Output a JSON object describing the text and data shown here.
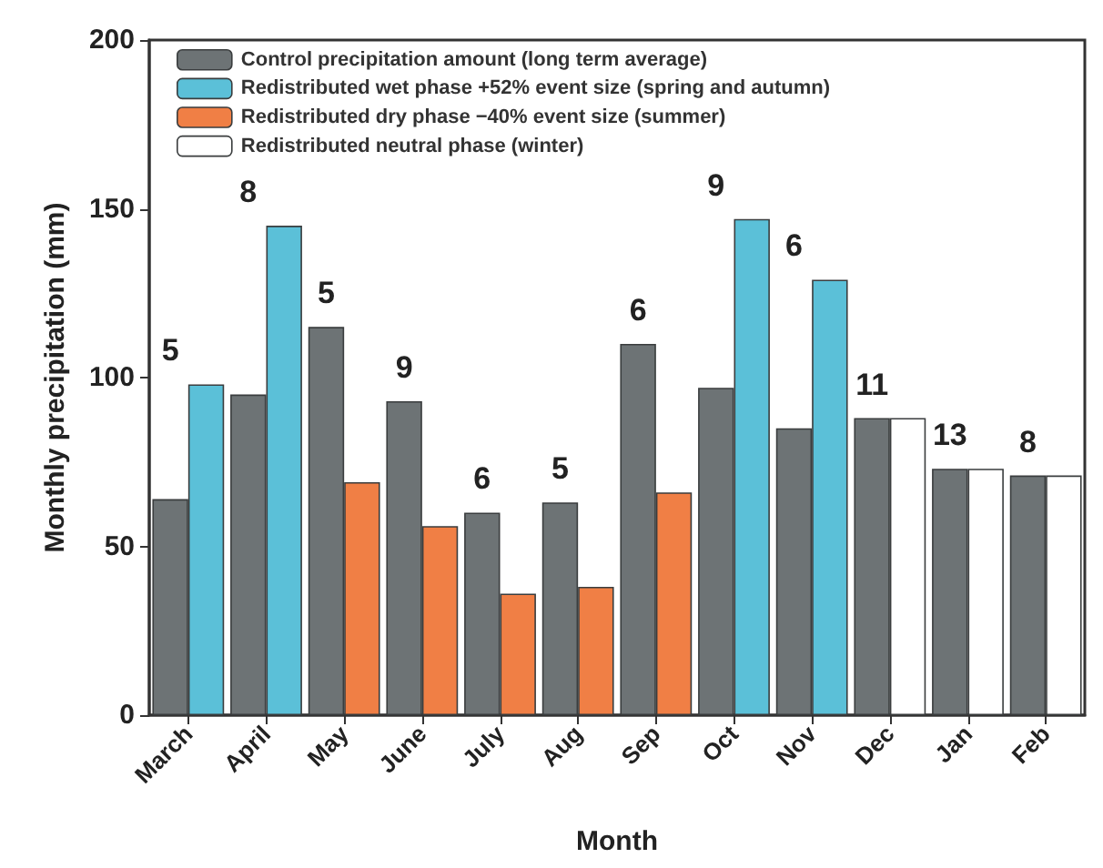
{
  "chart_data": {
    "type": "bar",
    "xlabel": "Month",
    "ylabel": "Monthly precipitation (mm)",
    "categories": [
      "March",
      "April",
      "May",
      "June",
      "July",
      "Aug",
      "Sep",
      "Oct",
      "Nov",
      "Dec",
      "Jan",
      "Feb"
    ],
    "series": [
      {
        "name": "Control precipitation amount (long term average)",
        "color": "#6d7375",
        "values": [
          64,
          95,
          115,
          93,
          60,
          63,
          110,
          97,
          85,
          88,
          73,
          71
        ]
      },
      {
        "name": "Redistributed wet phase +52% event size (spring and autumn)",
        "color": "#5bc0d8",
        "values": [
          98,
          145,
          null,
          null,
          null,
          null,
          null,
          147,
          129,
          null,
          null,
          null
        ]
      },
      {
        "name": "Redistributed dry phase −40% event size (summer)",
        "color": "#f07f45",
        "values": [
          null,
          null,
          69,
          56,
          36,
          38,
          66,
          null,
          null,
          null,
          null,
          null
        ]
      },
      {
        "name": "Redistributed neutral phase (winter)",
        "color": "#ffffff",
        "values": [
          null,
          null,
          null,
          null,
          null,
          null,
          null,
          null,
          null,
          88,
          73,
          71
        ]
      }
    ],
    "ylim": [
      0,
      200
    ],
    "yticks": [
      0,
      50,
      100,
      150,
      200
    ],
    "grid": false,
    "legend": "top left",
    "annotations": [
      {
        "text": "5",
        "x": "March",
        "y": 98
      },
      {
        "text": "8",
        "x": "April",
        "y": 145
      },
      {
        "text": "5",
        "x": "May",
        "y": 115
      },
      {
        "text": "9",
        "x": "June",
        "y": 93
      },
      {
        "text": "6",
        "x": "July",
        "y": 60
      },
      {
        "text": "5",
        "x": "Aug",
        "y": 63
      },
      {
        "text": "6",
        "x": "Sep",
        "y": 110
      },
      {
        "text": "9",
        "x": "Oct",
        "y": 147
      },
      {
        "text": "6",
        "x": "Nov",
        "y": 129
      },
      {
        "text": "11",
        "x": "Dec",
        "y": 88
      },
      {
        "text": "13",
        "x": "Jan",
        "y": 73
      },
      {
        "text": "8",
        "x": "Feb",
        "y": 71
      }
    ]
  }
}
